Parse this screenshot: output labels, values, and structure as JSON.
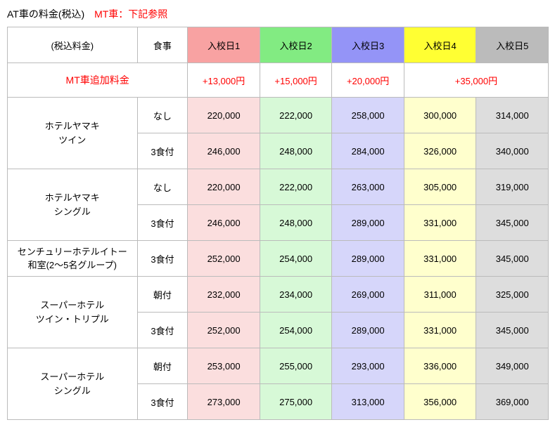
{
  "title": {
    "black": "AT車の料金(税込)",
    "red": "MT車：下記参照"
  },
  "headers": {
    "plan": "(税込料金)",
    "meal": "食事",
    "day1": "入校日1",
    "day2": "入校日2",
    "day3": "入校日3",
    "day4": "入校日4",
    "day5": "入校日5"
  },
  "mt": {
    "label": "MT車追加料金",
    "d1": "+13,000円",
    "d2": "+15,000円",
    "d3": "+20,000円",
    "d45": "+35,000円"
  },
  "plans": {
    "p1": {
      "name": "ホテルヤマキ\nツイン"
    },
    "p2": {
      "name": "ホテルヤマキ\nシングル"
    },
    "p3": {
      "name": "センチュリーホテルイトー\n和室(2～5名グループ)"
    },
    "p4": {
      "name": "スーパーホテル\nツイン・トリプル"
    },
    "p5": {
      "name": "スーパーホテル\nシングル"
    }
  },
  "meals": {
    "none": "なし",
    "m3": "3食付",
    "breakfast": "朝付"
  },
  "rows": {
    "r1": [
      "220,000",
      "222,000",
      "258,000",
      "300,000",
      "314,000"
    ],
    "r2": [
      "246,000",
      "248,000",
      "284,000",
      "326,000",
      "340,000"
    ],
    "r3": [
      "220,000",
      "222,000",
      "263,000",
      "305,000",
      "319,000"
    ],
    "r4": [
      "246,000",
      "248,000",
      "289,000",
      "331,000",
      "345,000"
    ],
    "r5": [
      "252,000",
      "254,000",
      "289,000",
      "331,000",
      "345,000"
    ],
    "r6": [
      "232,000",
      "234,000",
      "269,000",
      "311,000",
      "325,000"
    ],
    "r7": [
      "252,000",
      "254,000",
      "289,000",
      "331,000",
      "345,000"
    ],
    "r8": [
      "253,000",
      "255,000",
      "293,000",
      "336,000",
      "349,000"
    ],
    "r9": [
      "273,000",
      "275,000",
      "313,000",
      "356,000",
      "369,000"
    ]
  }
}
